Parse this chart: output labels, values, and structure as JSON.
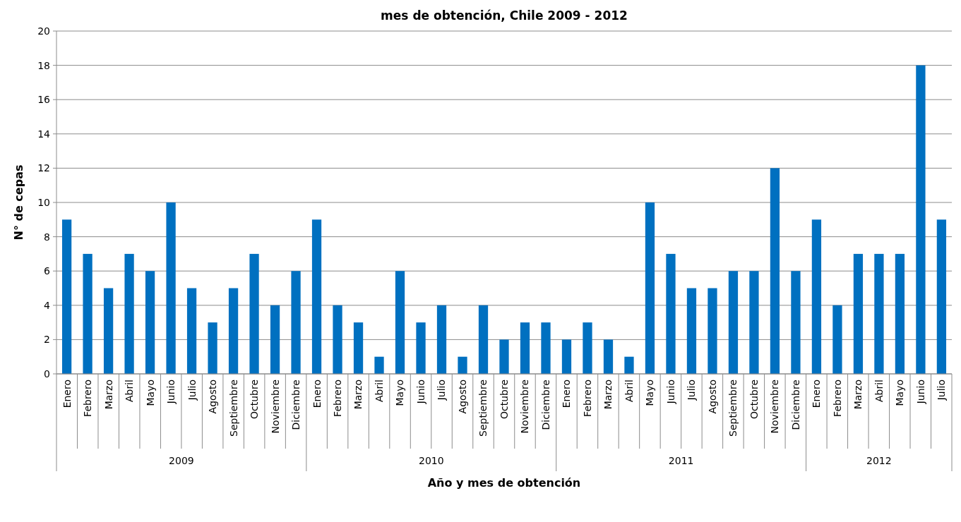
{
  "chart_data": {
    "type": "bar",
    "title": "mes de obtención, Chile 2009 - 2012",
    "xlabel": "Año y mes de obtención",
    "ylabel": "N° de cepas",
    "categories": [
      "Enero",
      "Febrero",
      "Marzo",
      "Abril",
      "Mayo",
      "Junio",
      "Julio",
      "Agosto",
      "Septiembre",
      "Octubre",
      "Noviembre",
      "Diciembre",
      "Enero",
      "Febrero",
      "Marzo",
      "Abril",
      "Mayo",
      "Junio",
      "Julio",
      "Agosto",
      "Septiembre",
      "Octubre",
      "Noviembre",
      "Diciembre",
      "Enero",
      "Febrero",
      "Marzo",
      "Abril",
      "Mayo",
      "Junio",
      "Julio",
      "Agosto",
      "Septiembre",
      "Octubre",
      "Noviembre",
      "Diciembre",
      "Enero",
      "Febrero",
      "Marzo",
      "Abril",
      "Mayo",
      "Junio",
      "Julio"
    ],
    "values": [
      9,
      7,
      5,
      7,
      6,
      10,
      5,
      3,
      5,
      7,
      4,
      6,
      9,
      4,
      3,
      1,
      6,
      3,
      4,
      1,
      4,
      2,
      3,
      3,
      2,
      3,
      2,
      1,
      10,
      7,
      5,
      5,
      6,
      6,
      12,
      6,
      9,
      4,
      7,
      7,
      7,
      18,
      9
    ],
    "color": "#0070c0",
    "ylim": [
      0,
      20
    ],
    "yticks": [
      0,
      2,
      4,
      6,
      8,
      10,
      12,
      14,
      16,
      18,
      20
    ],
    "grid": "y",
    "annotations": [
      "2009",
      "2010",
      "2011",
      "2012"
    ]
  }
}
